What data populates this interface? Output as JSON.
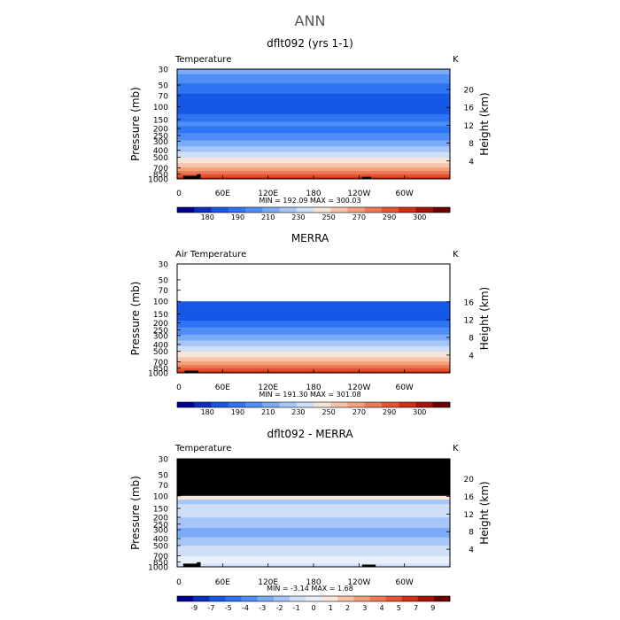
{
  "title": "ANN",
  "colors": {
    "temperature_levels": [
      "#00008f",
      "#0a2fbf",
      "#1657e6",
      "#2e74f3",
      "#4f8ef6",
      "#7aaaf8",
      "#a6c6f9",
      "#cfdff8",
      "#f5e4d7",
      "#f8c4a9",
      "#f4a07c",
      "#ee7a55",
      "#e55432",
      "#d12e14",
      "#a51405",
      "#6b0000"
    ],
    "difference_levels": [
      "#00008f",
      "#0a2fbf",
      "#1657e6",
      "#2e74f3",
      "#4f8ef6",
      "#7aaaf8",
      "#a6c6f9",
      "#cfdff8",
      "#e9f0fb",
      "#fbe9de",
      "#f8c4a9",
      "#f4a07c",
      "#ee7a55",
      "#e55432",
      "#d12e14",
      "#a51405",
      "#6b0000"
    ],
    "missing": "#000000"
  },
  "chart_data": [
    {
      "type": "heatmap",
      "title": "dflt092 (yrs 1-1)",
      "variable_label": "Temperature",
      "units": "K",
      "ylabel": "Pressure (mb)",
      "y2label": "Height (km)",
      "x_ticks": [
        "0",
        "60E",
        "120E",
        "180",
        "120W",
        "60W"
      ],
      "x_values": [
        0,
        60,
        120,
        180,
        240,
        300
      ],
      "xlim": [
        0,
        360
      ],
      "y_ticks": [
        "30",
        "50",
        "70",
        "100",
        "150",
        "200",
        "250",
        "300",
        "400",
        "500",
        "700",
        "850",
        "1000"
      ],
      "y_values": [
        30,
        50,
        70,
        100,
        150,
        200,
        250,
        300,
        400,
        500,
        700,
        850,
        1000
      ],
      "ylim": [
        1000,
        30
      ],
      "y_scale": "log",
      "y2_ticks": [
        "20",
        "16",
        "12",
        "8",
        "4"
      ],
      "y2_values": [
        20,
        16,
        12,
        8,
        4
      ],
      "stats": "MIN = 192.09  MAX = 300.03",
      "colorbar_ticks": [
        "180",
        "190",
        "210",
        "230",
        "250",
        "270",
        "290",
        "300"
      ],
      "bands": [
        {
          "p": [
            1000,
            930
          ],
          "level": 13
        },
        {
          "p": [
            930,
            850
          ],
          "level": 12
        },
        {
          "p": [
            850,
            770
          ],
          "level": 11
        },
        {
          "p": [
            770,
            690
          ],
          "level": 10
        },
        {
          "p": [
            690,
            600
          ],
          "level": 9
        },
        {
          "p": [
            600,
            500
          ],
          "level": 8
        },
        {
          "p": [
            500,
            420
          ],
          "level": 7
        },
        {
          "p": [
            420,
            350
          ],
          "level": 6
        },
        {
          "p": [
            350,
            290
          ],
          "level": 5
        },
        {
          "p": [
            290,
            230
          ],
          "level": 4
        },
        {
          "p": [
            230,
            185
          ],
          "level": 3
        },
        {
          "p": [
            185,
            160
          ],
          "level": 4
        },
        {
          "p": [
            160,
            125
          ],
          "level": 3
        },
        {
          "p": [
            125,
            65
          ],
          "level": 2
        },
        {
          "p": [
            65,
            47
          ],
          "level": 3
        },
        {
          "p": [
            47,
            35
          ],
          "level": 4
        },
        {
          "p": [
            35,
            30
          ],
          "level": 5
        }
      ],
      "terrain": [
        {
          "lon": [
            8,
            30
          ],
          "p": 905
        },
        {
          "lon": [
            26,
            31
          ],
          "p": 860
        },
        {
          "lon": [
            244,
            256
          ],
          "p": 935
        }
      ]
    },
    {
      "type": "heatmap",
      "title": "MERRA",
      "variable_label": "Air Temperature",
      "units": "K",
      "ylabel": "Pressure (mb)",
      "y2label": "Height (km)",
      "x_ticks": [
        "0",
        "60E",
        "120E",
        "180",
        "120W",
        "60W"
      ],
      "x_values": [
        0,
        60,
        120,
        180,
        240,
        300
      ],
      "xlim": [
        0,
        360
      ],
      "y_ticks": [
        "30",
        "50",
        "70",
        "100",
        "150",
        "200",
        "250",
        "300",
        "400",
        "500",
        "700",
        "850",
        "1000"
      ],
      "y_values": [
        30,
        50,
        70,
        100,
        150,
        200,
        250,
        300,
        400,
        500,
        700,
        850,
        1000
      ],
      "ylim": [
        1000,
        30
      ],
      "y_scale": "log",
      "y2_ticks": [
        "16",
        "12",
        "8",
        "4"
      ],
      "y2_values": [
        16,
        12,
        8,
        4
      ],
      "stats": "MIN = 191.30  MAX = 301.08",
      "colorbar_ticks": [
        "180",
        "190",
        "210",
        "230",
        "250",
        "270",
        "290",
        "300"
      ],
      "data_top_p": 100,
      "bands": [
        {
          "p": [
            1000,
            930
          ],
          "level": 13
        },
        {
          "p": [
            930,
            850
          ],
          "level": 12
        },
        {
          "p": [
            850,
            770
          ],
          "level": 11
        },
        {
          "p": [
            770,
            690
          ],
          "level": 10
        },
        {
          "p": [
            690,
            600
          ],
          "level": 9
        },
        {
          "p": [
            600,
            500
          ],
          "level": 8
        },
        {
          "p": [
            500,
            420
          ],
          "level": 7
        },
        {
          "p": [
            420,
            350
          ],
          "level": 6
        },
        {
          "p": [
            350,
            290
          ],
          "level": 5
        },
        {
          "p": [
            290,
            230
          ],
          "level": 4
        },
        {
          "p": [
            230,
            185
          ],
          "level": 3
        },
        {
          "p": [
            185,
            125
          ],
          "level": 2
        },
        {
          "p": [
            125,
            100
          ],
          "level": 2
        }
      ],
      "terrain": [
        {
          "lon": [
            10,
            28
          ],
          "p": 930
        }
      ]
    },
    {
      "type": "heatmap",
      "title": "dflt092 - MERRA",
      "variable_label": "Temperature",
      "units": "K",
      "ylabel": "Pressure (mb)",
      "y2label": "Height (km)",
      "x_ticks": [
        "0",
        "60E",
        "120E",
        "180",
        "120W",
        "60W"
      ],
      "x_values": [
        0,
        60,
        120,
        180,
        240,
        300
      ],
      "xlim": [
        0,
        360
      ],
      "y_ticks": [
        "30",
        "50",
        "70",
        "100",
        "150",
        "200",
        "250",
        "300",
        "400",
        "500",
        "700",
        "850",
        "1000"
      ],
      "y_values": [
        30,
        50,
        70,
        100,
        150,
        200,
        250,
        300,
        400,
        500,
        700,
        850,
        1000
      ],
      "ylim": [
        1000,
        30
      ],
      "y_scale": "log",
      "y2_ticks": [
        "20",
        "16",
        "12",
        "8",
        "4"
      ],
      "y2_values": [
        20,
        16,
        12,
        8,
        4
      ],
      "stats": "MIN =   -3.14  MAX =    1.68",
      "colorbar_ticks": [
        "-9",
        "-7",
        "-5",
        "-4",
        "-3",
        "-2",
        "-1",
        "0",
        "1",
        "2",
        "3",
        "4",
        "5",
        "7",
        "9"
      ],
      "missing_above_p": 100,
      "bands": [
        {
          "p": [
            1000,
            900
          ],
          "level": 7
        },
        {
          "p": [
            900,
            700
          ],
          "level": 8
        },
        {
          "p": [
            700,
            500
          ],
          "level": 7
        },
        {
          "p": [
            500,
            380
          ],
          "level": 6
        },
        {
          "p": [
            380,
            280
          ],
          "level": 5
        },
        {
          "p": [
            280,
            200
          ],
          "level": 6
        },
        {
          "p": [
            200,
            130
          ],
          "level": 7
        },
        {
          "p": [
            130,
            112
          ],
          "level": 6
        },
        {
          "p": [
            112,
            100
          ],
          "level": 9
        }
      ],
      "terrain": [
        {
          "lon": [
            8,
            30
          ],
          "p": 900
        },
        {
          "lon": [
            26,
            31
          ],
          "p": 860
        },
        {
          "lon": [
            244,
            262
          ],
          "p": 930
        }
      ]
    }
  ]
}
